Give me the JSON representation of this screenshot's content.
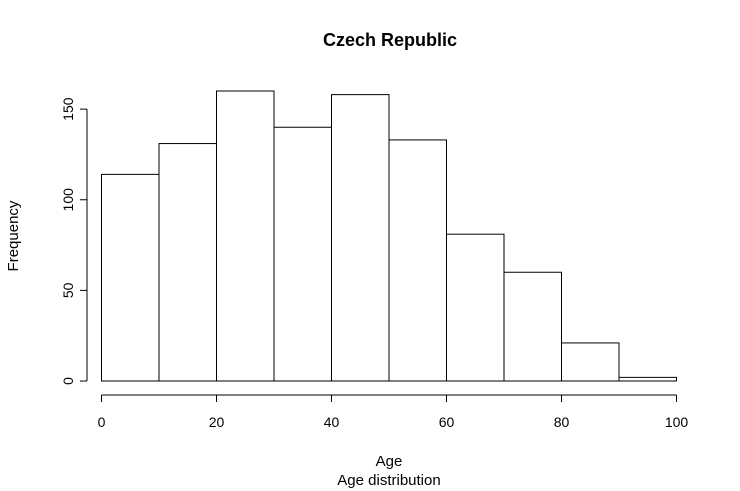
{
  "chart_data": {
    "type": "bar",
    "title": "Czech Republic",
    "xlabel": "Age",
    "sublabel": "Age distribution",
    "ylabel": "Frequency",
    "bins": [
      [
        0,
        10
      ],
      [
        10,
        20
      ],
      [
        20,
        30
      ],
      [
        30,
        40
      ],
      [
        40,
        50
      ],
      [
        50,
        60
      ],
      [
        60,
        70
      ],
      [
        70,
        80
      ],
      [
        80,
        90
      ],
      [
        90,
        100
      ]
    ],
    "values": [
      114,
      131,
      160,
      140,
      158,
      133,
      81,
      60,
      21,
      2
    ],
    "xlim": [
      0,
      100
    ],
    "ylim": [
      0,
      160
    ],
    "xticks": [
      0,
      20,
      40,
      60,
      80,
      100
    ],
    "yticks": [
      0,
      50,
      100,
      150
    ],
    "grid": false,
    "legend": "none"
  }
}
